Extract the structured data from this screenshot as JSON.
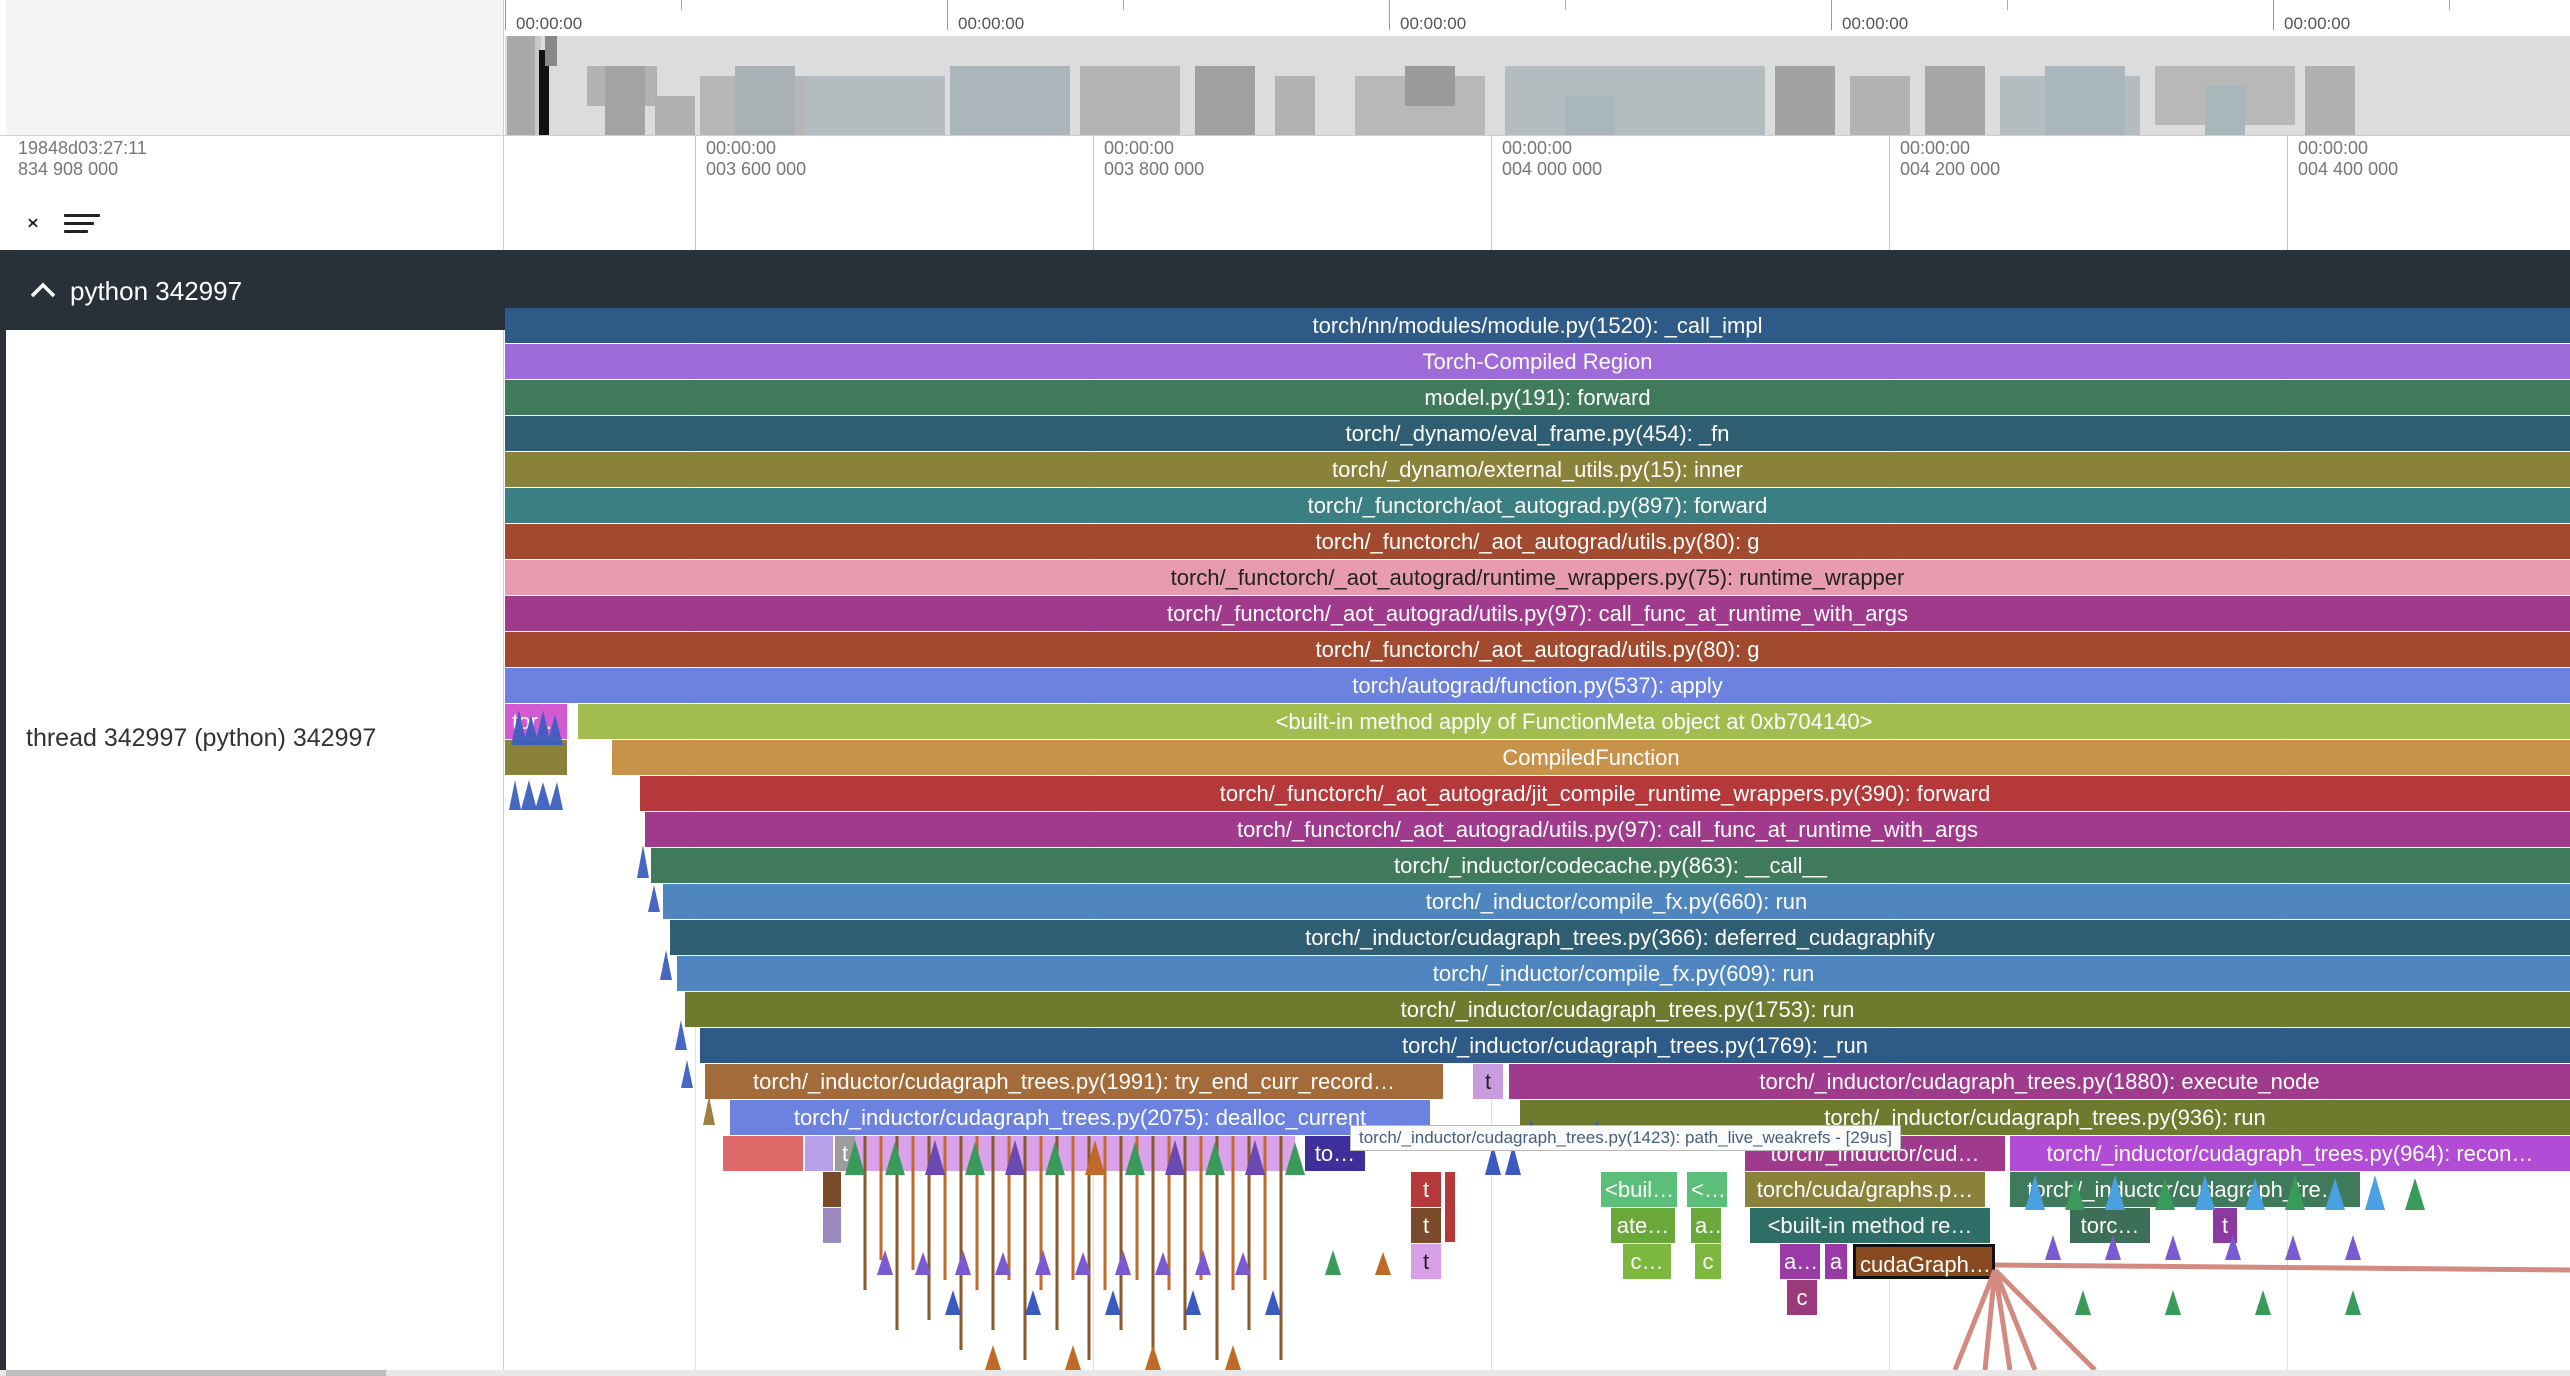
{
  "overview": {
    "ticks": [
      "00:00:00",
      "00:00:00",
      "00:00:00",
      "00:00:00",
      "00:00:00"
    ]
  },
  "axis": {
    "offset_line1": "19848d03:27:11",
    "offset_line2": "834 908 000",
    "ticks": [
      {
        "l1": "00:00:00",
        "l2": "003 600 000"
      },
      {
        "l1": "00:00:00",
        "l2": "003 800 000"
      },
      {
        "l1": "00:00:00",
        "l2": "004 000 000"
      },
      {
        "l1": "00:00:00",
        "l2": "004 200 000"
      },
      {
        "l1": "00:00:00",
        "l2": "004 400 000"
      }
    ]
  },
  "process": {
    "title": "python 342997"
  },
  "thread": {
    "label": "thread 342997 (python) 342997"
  },
  "tooltip": "torch/_inductor/cudagraph_trees.py(1423): path_live_weakrefs - [29us]",
  "slices": {
    "s00": "torch/nn/modules/module.py(1520): _call_impl",
    "s01": "Torch-Compiled Region",
    "s02": "model.py(191): forward",
    "s03": "torch/_dynamo/eval_frame.py(454): _fn",
    "s04": "torch/_dynamo/external_utils.py(15): inner",
    "s05": "torch/_functorch/aot_autograd.py(897): forward",
    "s06": "torch/_functorch/_aot_autograd/utils.py(80): g",
    "s07": "torch/_functorch/_aot_autograd/runtime_wrappers.py(75): runtime_wrapper",
    "s08": "torch/_functorch/_aot_autograd/utils.py(97): call_func_at_runtime_with_args",
    "s09": "torch/_functorch/_aot_autograd/utils.py(80): g",
    "s10": "torch/autograd/function.py(537): apply",
    "s11a": "tor…",
    "s11": "<built-in method apply of FunctionMeta object at 0xb704140>",
    "s12": "CompiledFunction",
    "s13": "torch/_functorch/_aot_autograd/jit_compile_runtime_wrappers.py(390): forward",
    "s14": "torch/_functorch/_aot_autograd/utils.py(97): call_func_at_runtime_with_args",
    "s15": "torch/_inductor/codecache.py(863): __call__",
    "s16": "torch/_inductor/compile_fx.py(660): run",
    "s17": "torch/_inductor/cudagraph_trees.py(366): deferred_cudagraphify",
    "s18": "torch/_inductor/compile_fx.py(609): run",
    "s19": "torch/_inductor/cudagraph_trees.py(1753): run",
    "s20": "torch/_inductor/cudagraph_trees.py(1769): _run",
    "s21a": "torch/_inductor/cudagraph_trees.py(1991): try_end_curr_record…",
    "s21b": "t",
    "s21c": "torch/_inductor/cudagraph_trees.py(1880): execute_node",
    "s22a": "torch/_inductor/cudagraph_trees.py(2075): dealloc_current",
    "s22b": "torch/_inductor/cudagraph_trees.py(936): run",
    "s23a": "t",
    "s23b": "to…",
    "s23c": "torch/_inductor/cud…",
    "s23d": "torch/_inductor/cudagraph_trees.py(964): recon…",
    "s24a": "t",
    "s24b": "<buil…",
    "s24c": "<…",
    "s24d": "torch/cuda/graphs.p…",
    "s24e": "torch/_inductor/cudagraph_tre…",
    "s25a": "t",
    "s25b": "ate…",
    "s25c": "a…",
    "s25d": "<built-in method re…",
    "s25e": "torc…",
    "s25f": "t",
    "s26a": "t",
    "s26b": "c…",
    "s26c": "c",
    "s26d": "a…",
    "s26e": "a",
    "s26f": "cudaGraph…",
    "s27a": "c"
  }
}
